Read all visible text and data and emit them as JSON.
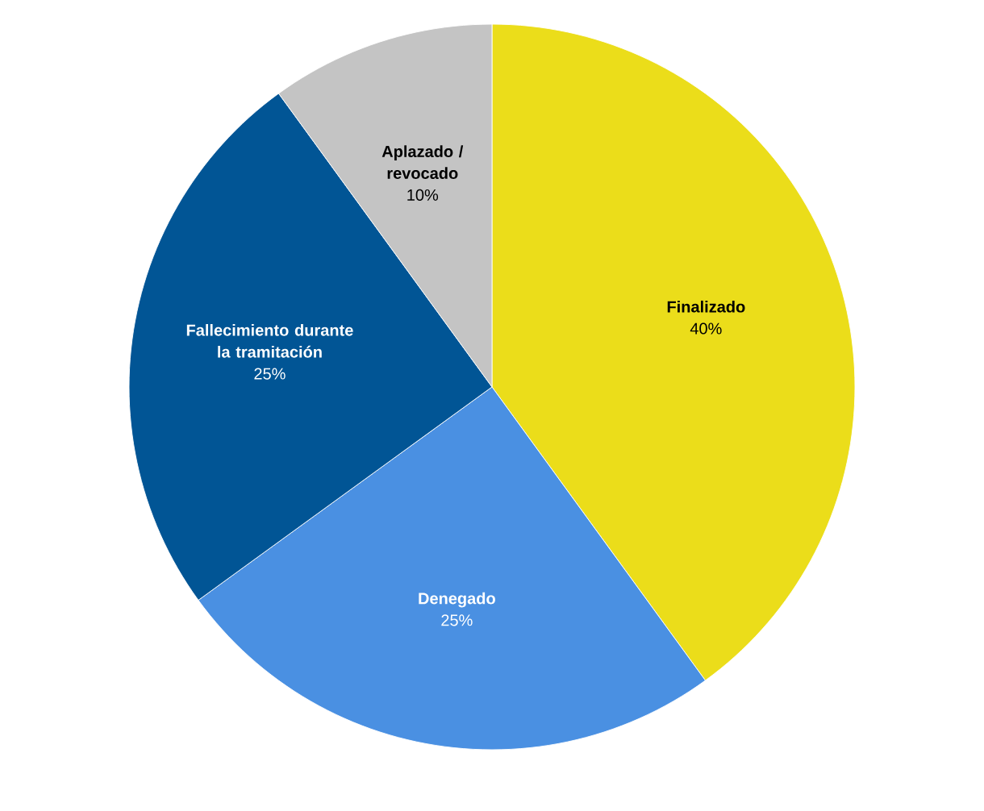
{
  "chart_data": {
    "type": "pie",
    "categories": [
      "Finalizado",
      "Denegado",
      "Fallecimiento durante la tramitación",
      "Aplazado / revocado"
    ],
    "values": [
      40,
      25,
      25,
      10
    ],
    "value_labels": [
      "40%",
      "25%",
      "25%",
      "10%"
    ],
    "colors": [
      "#ebdd1a",
      "#4a90e2",
      "#015595",
      "#c4c4c4"
    ]
  }
}
